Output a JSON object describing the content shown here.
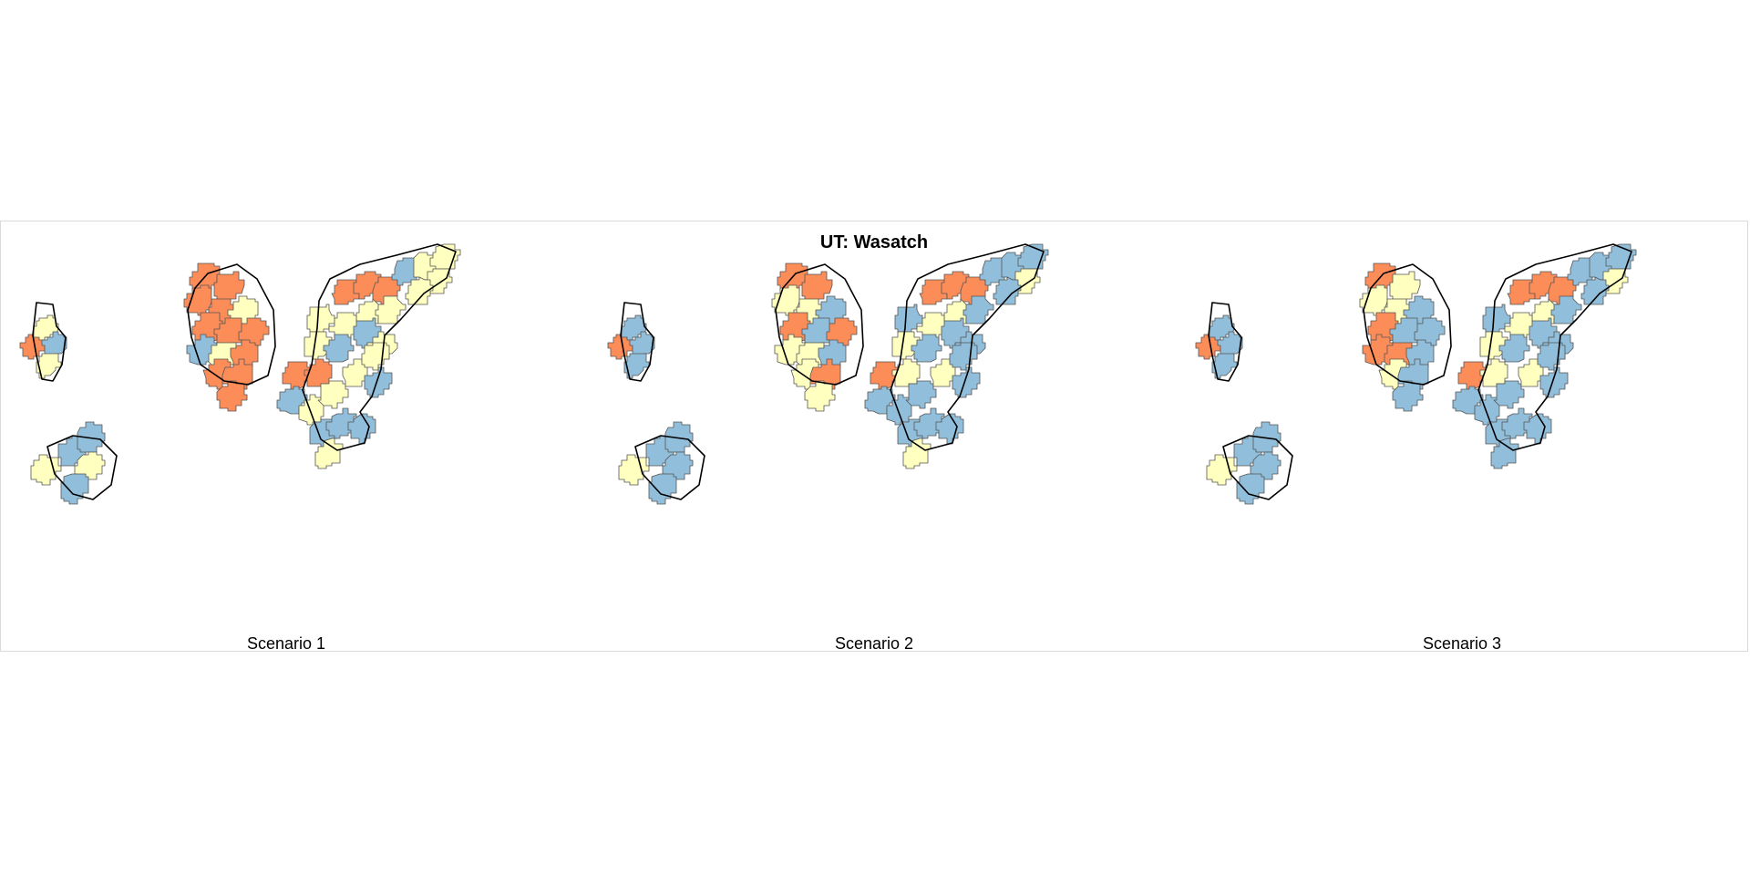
{
  "title": "UT: Wasatch",
  "colors": {
    "orange": "#FC8D59",
    "yellow": "#FFFFBF",
    "blue": "#91BFDB"
  },
  "panels": [
    {
      "caption": "Scenario 1",
      "clusters": [
        [
          "orange",
          "yellow",
          "blue",
          "yellow"
        ],
        [
          "yellow",
          "blue",
          "blue",
          "yellow",
          "blue"
        ],
        [
          "orange",
          "orange",
          "orange",
          "orange",
          "yellow",
          "orange",
          "orange",
          "orange",
          "blue",
          "yellow",
          "orange",
          "orange",
          "orange",
          "orange"
        ],
        [
          "orange",
          "orange",
          "orange",
          "blue",
          "yellow",
          "yellow",
          "yellow",
          "yellow",
          "yellow",
          "yellow",
          "yellow",
          "yellow",
          "blue",
          "yellow",
          "yellow",
          "blue",
          "orange",
          "orange",
          "blue",
          "yellow",
          "yellow",
          "yellow",
          "yellow",
          "blue",
          "blue",
          "blue",
          "blue",
          "yellow"
        ]
      ]
    },
    {
      "caption": "Scenario 2",
      "clusters": [
        [
          "orange",
          "blue",
          "blue",
          "blue"
        ],
        [
          "yellow",
          "blue",
          "blue",
          "blue",
          "blue"
        ],
        [
          "orange",
          "orange",
          "yellow",
          "yellow",
          "blue",
          "orange",
          "blue",
          "orange",
          "yellow",
          "yellow",
          "blue",
          "yellow",
          "orange",
          "yellow"
        ],
        [
          "orange",
          "orange",
          "orange",
          "blue",
          "blue",
          "blue",
          "yellow",
          "blue",
          "yellow",
          "blue",
          "blue",
          "yellow",
          "blue",
          "blue",
          "yellow",
          "blue",
          "orange",
          "yellow",
          "blue",
          "blue",
          "blue",
          "yellow",
          "blue",
          "blue",
          "blue",
          "blue",
          "blue",
          "yellow"
        ]
      ]
    },
    {
      "caption": "Scenario 3",
      "clusters": [
        [
          "orange",
          "blue",
          "blue",
          "blue"
        ],
        [
          "yellow",
          "blue",
          "blue",
          "blue",
          "blue"
        ],
        [
          "orange",
          "yellow",
          "yellow",
          "yellow",
          "blue",
          "orange",
          "blue",
          "blue",
          "orange",
          "orange",
          "blue",
          "yellow",
          "blue",
          "blue"
        ],
        [
          "orange",
          "orange",
          "orange",
          "blue",
          "blue",
          "blue",
          "yellow",
          "blue",
          "yellow",
          "blue",
          "blue",
          "yellow",
          "blue",
          "blue",
          "yellow",
          "blue",
          "orange",
          "yellow",
          "blue",
          "blue",
          "blue",
          "yellow",
          "blue",
          "blue",
          "blue",
          "blue",
          "blue",
          "blue"
        ]
      ]
    }
  ]
}
